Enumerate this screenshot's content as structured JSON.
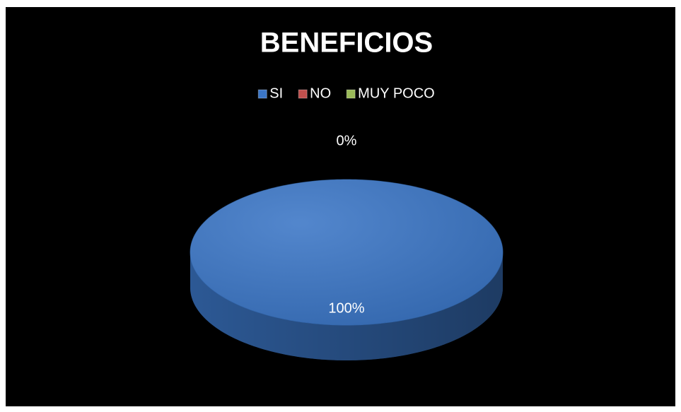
{
  "chart_data": {
    "type": "pie",
    "title": "BENEFICIOS",
    "categories": [
      "SI",
      "NO",
      "MUY POCO"
    ],
    "values": [
      100,
      0,
      0
    ],
    "value_labels": [
      "100%",
      "0%",
      null
    ],
    "colors": [
      "#3b76c6",
      "#c0504d",
      "#9bbb59"
    ],
    "legend": "top"
  }
}
